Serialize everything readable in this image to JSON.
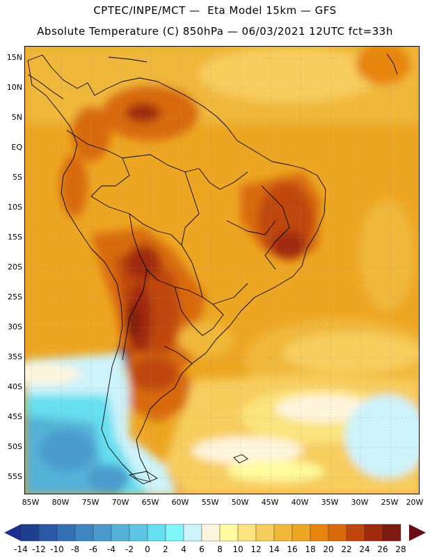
{
  "title": {
    "line1": "CPTEC/INPE/MCT —  Eta Model 15km — GFS",
    "line2": "Absolute Temperature (C) 850hPa — 06/03/2021 12UTC fct=33h"
  },
  "map": {
    "lat_labels": [
      "15N",
      "10N",
      "5N",
      "EQ",
      "5S",
      "10S",
      "15S",
      "20S",
      "25S",
      "30S",
      "35S",
      "40S",
      "45S",
      "50S",
      "55S"
    ],
    "lon_labels": [
      "85W",
      "80W",
      "75W",
      "70W",
      "65W",
      "60W",
      "55W",
      "50W",
      "45W",
      "40W",
      "35W",
      "30W",
      "25W",
      "20W"
    ],
    "grid": "dotted"
  },
  "colorbar": {
    "labels": [
      "-14",
      "-12",
      "-10",
      "-8",
      "-6",
      "-4",
      "-2",
      "0",
      "2",
      "4",
      "6",
      "8",
      "10",
      "12",
      "14",
      "16",
      "18",
      "20",
      "22",
      "24",
      "26",
      "28"
    ],
    "colors": [
      "#1f3f8f",
      "#2a5aa6",
      "#3470b4",
      "#3d86c2",
      "#4a9bcc",
      "#55b2d8",
      "#5cc6e4",
      "#66dff0",
      "#7ff6fa",
      "#cdf3fb",
      "#fff5dc",
      "#fffb9e",
      "#fbe37d",
      "#f7cd5d",
      "#f0b83b",
      "#eda622",
      "#e8850f",
      "#d86a0a",
      "#bf470a",
      "#a02a0c",
      "#7c1a10"
    ],
    "low_arrow_color": "#1e2e8c",
    "high_arrow_color": "#6a0d18"
  }
}
